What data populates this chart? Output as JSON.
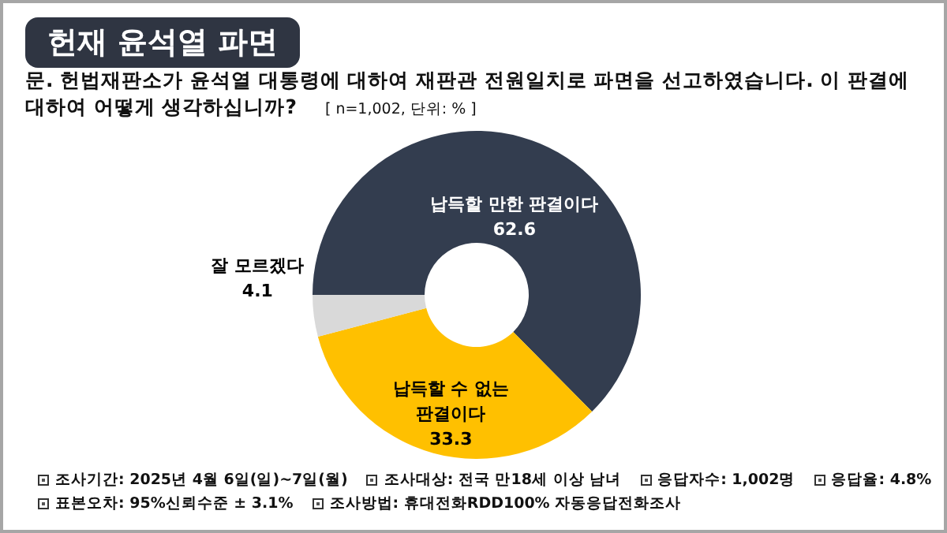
{
  "chart_data": {
    "type": "donut",
    "title": "헌재 윤석열 파면",
    "subtitle": "문. 헌법재판소가 윤석열 대통령에 대하여 재판관 전원일치로 파면을 선고하였습니다. 이 판결에 대하여 어떻게 생각하십니까?",
    "annotations": [
      "[ n=1,002, 단위: % ]",
      "조사기간: 2025년 4월 6일(일)~7일(월)",
      "조사대상: 전국 만18세 이상 남녀",
      "응답자수: 1,002명",
      "응답율: 4.8%",
      "표본오차: 95%신뢰수준 ± 3.1%",
      "조사방법: 휴대전화RDD100% 자동응답전화조사"
    ],
    "categories": [
      "납득할 만한 판결이다",
      "납득할 수 없는 판결이다",
      "잘 모르겠다"
    ],
    "values": [
      62.6,
      33.3,
      4.1
    ],
    "colors": [
      "#333d4f",
      "#ffc000",
      "#d9d9d9"
    ],
    "data_labels": true
  }
}
